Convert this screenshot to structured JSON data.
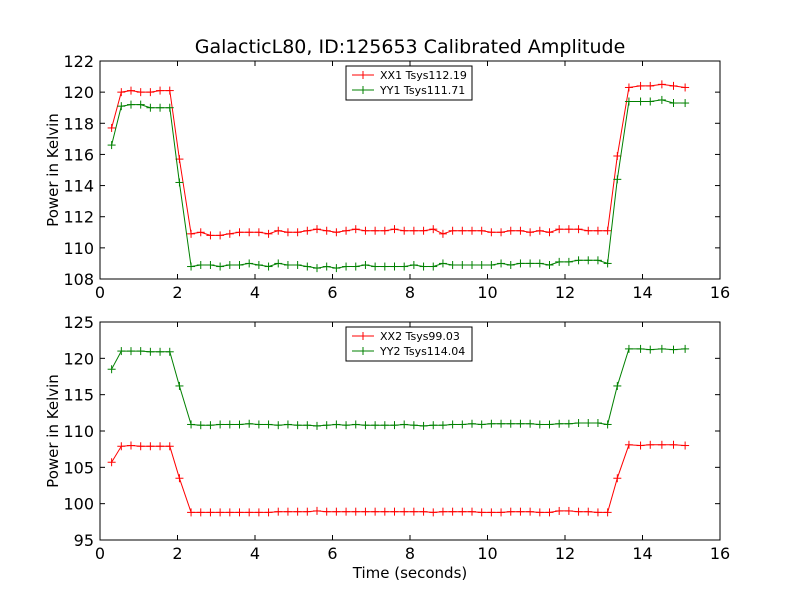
{
  "chart_data": [
    {
      "type": "line",
      "title": "GalacticL80, ID:125653 Calibrated Amplitude",
      "xlabel": "",
      "ylabel": "Power in Kelvin",
      "xlim": [
        0,
        16
      ],
      "ylim": [
        108,
        122
      ],
      "xticks": [
        0,
        2,
        4,
        6,
        8,
        10,
        12,
        14,
        16
      ],
      "yticks": [
        108,
        110,
        112,
        114,
        116,
        118,
        120,
        122
      ],
      "legend_position": "top-center",
      "grid": false,
      "x": [
        0.3,
        0.55,
        0.8,
        1.05,
        1.3,
        1.55,
        1.8,
        2.05,
        2.35,
        2.6,
        2.85,
        3.1,
        3.35,
        3.6,
        3.85,
        4.1,
        4.35,
        4.6,
        4.85,
        5.1,
        5.35,
        5.6,
        5.85,
        6.1,
        6.35,
        6.6,
        6.85,
        7.1,
        7.35,
        7.6,
        7.85,
        8.1,
        8.35,
        8.6,
        8.85,
        9.1,
        9.35,
        9.6,
        9.85,
        10.1,
        10.35,
        10.6,
        10.85,
        11.1,
        11.35,
        11.6,
        11.85,
        12.1,
        12.35,
        12.6,
        12.85,
        13.1,
        13.35,
        13.65,
        13.95,
        14.2,
        14.5,
        14.8,
        15.1
      ],
      "series": [
        {
          "name": "XX1 Tsys112.19",
          "color": "#ff0000",
          "values": [
            117.7,
            120.0,
            120.1,
            120.0,
            120.0,
            120.1,
            120.1,
            115.7,
            110.9,
            111.0,
            110.8,
            110.8,
            110.9,
            111.0,
            111.0,
            111.0,
            110.9,
            111.1,
            111.0,
            111.0,
            111.1,
            111.2,
            111.1,
            111.0,
            111.1,
            111.2,
            111.1,
            111.1,
            111.1,
            111.2,
            111.1,
            111.1,
            111.1,
            111.2,
            110.9,
            111.1,
            111.1,
            111.1,
            111.1,
            111.0,
            111.0,
            111.1,
            111.1,
            111.0,
            111.1,
            111.0,
            111.2,
            111.2,
            111.2,
            111.1,
            111.1,
            111.1,
            115.9,
            120.3,
            120.4,
            120.4,
            120.5,
            120.4,
            120.3
          ]
        },
        {
          "name": "YY1 Tsys111.71",
          "color": "#008000",
          "values": [
            116.6,
            119.1,
            119.2,
            119.2,
            119.0,
            119.0,
            119.0,
            114.2,
            108.8,
            108.9,
            108.9,
            108.8,
            108.9,
            108.9,
            109.0,
            108.9,
            108.8,
            109.0,
            108.9,
            108.9,
            108.8,
            108.7,
            108.8,
            108.7,
            108.8,
            108.8,
            108.9,
            108.8,
            108.8,
            108.8,
            108.8,
            108.9,
            108.8,
            108.8,
            109.0,
            108.9,
            108.9,
            108.9,
            108.9,
            108.9,
            109.0,
            108.9,
            109.0,
            109.0,
            109.0,
            108.9,
            109.1,
            109.1,
            109.2,
            109.2,
            109.2,
            109.0,
            114.4,
            119.4,
            119.4,
            119.4,
            119.5,
            119.3,
            119.3
          ]
        }
      ]
    },
    {
      "type": "line",
      "title": "",
      "xlabel": "Time (seconds)",
      "ylabel": "Power in Kelvin",
      "xlim": [
        0,
        16
      ],
      "ylim": [
        95,
        125
      ],
      "xticks": [
        0,
        2,
        4,
        6,
        8,
        10,
        12,
        14,
        16
      ],
      "yticks": [
        95,
        100,
        105,
        110,
        115,
        120,
        125
      ],
      "legend_position": "top-center",
      "grid": false,
      "x": [
        0.3,
        0.55,
        0.8,
        1.05,
        1.3,
        1.55,
        1.8,
        2.05,
        2.35,
        2.6,
        2.85,
        3.1,
        3.35,
        3.6,
        3.85,
        4.1,
        4.35,
        4.6,
        4.85,
        5.1,
        5.35,
        5.6,
        5.85,
        6.1,
        6.35,
        6.6,
        6.85,
        7.1,
        7.35,
        7.6,
        7.85,
        8.1,
        8.35,
        8.6,
        8.85,
        9.1,
        9.35,
        9.6,
        9.85,
        10.1,
        10.35,
        10.6,
        10.85,
        11.1,
        11.35,
        11.6,
        11.85,
        12.1,
        12.35,
        12.6,
        12.85,
        13.1,
        13.35,
        13.65,
        13.95,
        14.2,
        14.5,
        14.8,
        15.1
      ],
      "series": [
        {
          "name": "XX2 Tsys99.03",
          "color": "#ff0000",
          "values": [
            105.7,
            107.9,
            108.0,
            107.9,
            107.9,
            107.9,
            107.9,
            103.5,
            98.8,
            98.8,
            98.8,
            98.8,
            98.8,
            98.8,
            98.8,
            98.8,
            98.8,
            98.9,
            98.9,
            98.9,
            98.9,
            99.0,
            98.9,
            98.9,
            98.9,
            98.9,
            98.9,
            98.9,
            98.9,
            98.9,
            98.9,
            98.9,
            98.9,
            98.8,
            98.9,
            98.9,
            98.9,
            98.9,
            98.8,
            98.8,
            98.8,
            98.9,
            98.9,
            98.9,
            98.8,
            98.8,
            99.0,
            99.0,
            98.9,
            98.9,
            98.8,
            98.8,
            103.5,
            108.1,
            108.0,
            108.1,
            108.1,
            108.1,
            108.0
          ]
        },
        {
          "name": "YY2 Tsys114.04",
          "color": "#008000",
          "values": [
            118.5,
            121.0,
            121.0,
            121.0,
            120.9,
            120.9,
            120.9,
            116.2,
            110.9,
            110.8,
            110.8,
            110.9,
            110.9,
            110.9,
            111.0,
            110.9,
            110.9,
            110.8,
            110.9,
            110.8,
            110.8,
            110.7,
            110.8,
            110.9,
            110.8,
            110.9,
            110.8,
            110.8,
            110.8,
            110.8,
            110.9,
            110.8,
            110.7,
            110.8,
            110.8,
            110.9,
            110.9,
            111.0,
            110.9,
            111.0,
            111.0,
            111.0,
            111.0,
            111.0,
            110.9,
            110.9,
            111.0,
            111.0,
            111.1,
            111.1,
            111.1,
            110.9,
            116.2,
            121.3,
            121.3,
            121.2,
            121.3,
            121.2,
            121.3
          ]
        }
      ]
    }
  ]
}
